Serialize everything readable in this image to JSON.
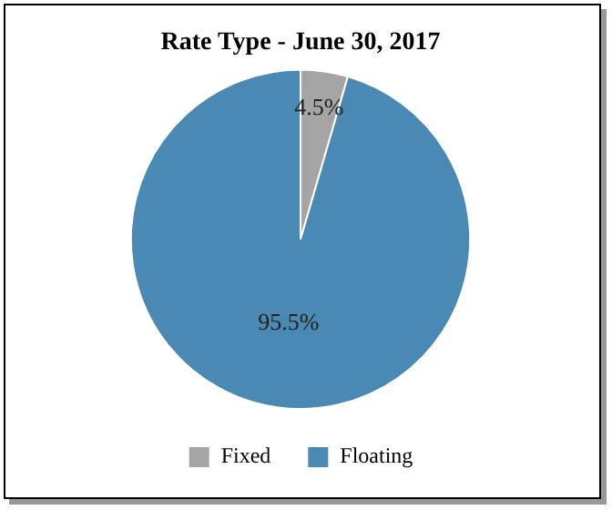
{
  "chart_data": {
    "type": "pie",
    "title": "Rate Type - June 30, 2017",
    "categories": [
      "Fixed",
      "Floating"
    ],
    "values": [
      4.5,
      95.5
    ],
    "colors": [
      "#a5a5a5",
      "#4a89b3"
    ],
    "value_labels": [
      "4.5%",
      "95.5%"
    ],
    "legend": "bottom"
  }
}
